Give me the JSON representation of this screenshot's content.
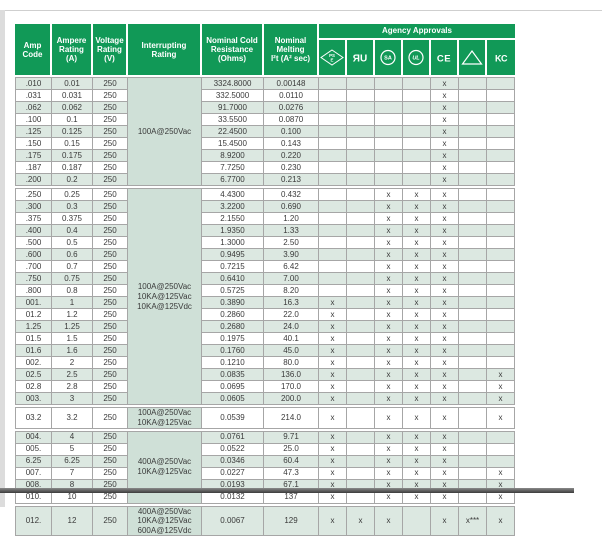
{
  "colors": {
    "header_green": "#119957",
    "row_stripe_green": "#dce8e1",
    "interrupting_cell_green": "#cfe0d7",
    "border_gray": "#a6a6a6"
  },
  "table": {
    "headers": {
      "amp_code": "Amp\nCode",
      "ampere_rating": "Ampere\nRating\n(A)",
      "voltage_rating": "Voltage\nRating\n(V)",
      "interrupting_rating": "Interrupting\nRating",
      "nominal_cold_resistance": "Nominal Cold\nResistance\n(Ohms)",
      "nominal_melting": "Nominal\nMelting\nI²t (A² sec)",
      "agency_approvals": "Agency Approvals"
    },
    "agency_icons": [
      {
        "name": "pse-icon",
        "glyph_top": "PS",
        "glyph_bottom": "E"
      },
      {
        "name": "ul-recognized-icon",
        "glyph": "ЯU"
      },
      {
        "name": "csa-icon",
        "glyph": "SA"
      },
      {
        "name": "ul-listed-icon",
        "glyph": "UL"
      },
      {
        "name": "ce-icon",
        "glyph": "CE"
      },
      {
        "name": "vde-triangle-icon",
        "glyph": ""
      },
      {
        "name": "kc-icon",
        "glyph": "KC"
      }
    ],
    "groups": [
      {
        "start": 0,
        "count": 9,
        "label": "100A@250Vac"
      },
      {
        "start": 9,
        "count": 18,
        "label": "100A@250Vac\n10KA@125Vac\n10KA@125Vdc"
      },
      {
        "start": 27,
        "count": 1,
        "label": "100A@250Vac\n10KA@125Vac"
      },
      {
        "start": 28,
        "count": 6,
        "label": "400A@250Vac\n10KA@125Vac"
      },
      {
        "start": 34,
        "count": 1,
        "label": "400A@250Vac\n10KA@125Vac\n600A@125Vdc"
      }
    ],
    "rows": [
      {
        "code": ".010",
        "ampere": "0.01",
        "voltage": "250",
        "resistance": "3324.8000",
        "i2t": "0.00148",
        "approvals": [
          "",
          "",
          "",
          "",
          "x",
          "",
          ""
        ]
      },
      {
        "code": ".031",
        "ampere": "0.031",
        "voltage": "250",
        "resistance": "332.5000",
        "i2t": "0.0110",
        "approvals": [
          "",
          "",
          "",
          "",
          "x",
          "",
          ""
        ]
      },
      {
        "code": ".062",
        "ampere": "0.062",
        "voltage": "250",
        "resistance": "91.7000",
        "i2t": "0.0276",
        "approvals": [
          "",
          "",
          "",
          "",
          "x",
          "",
          ""
        ]
      },
      {
        "code": ".100",
        "ampere": "0.1",
        "voltage": "250",
        "resistance": "33.5500",
        "i2t": "0.0870",
        "approvals": [
          "",
          "",
          "",
          "",
          "x",
          "",
          ""
        ]
      },
      {
        "code": ".125",
        "ampere": "0.125",
        "voltage": "250",
        "resistance": "22.4500",
        "i2t": "0.100",
        "approvals": [
          "",
          "",
          "",
          "",
          "x",
          "",
          ""
        ]
      },
      {
        "code": ".150",
        "ampere": "0.15",
        "voltage": "250",
        "resistance": "15.4500",
        "i2t": "0.143",
        "approvals": [
          "",
          "",
          "",
          "",
          "x",
          "",
          ""
        ]
      },
      {
        "code": ".175",
        "ampere": "0.175",
        "voltage": "250",
        "resistance": "8.9200",
        "i2t": "0.220",
        "approvals": [
          "",
          "",
          "",
          "",
          "x",
          "",
          ""
        ]
      },
      {
        "code": ".187",
        "ampere": "0.187",
        "voltage": "250",
        "resistance": "7.7250",
        "i2t": "0.230",
        "approvals": [
          "",
          "",
          "",
          "",
          "x",
          "",
          ""
        ]
      },
      {
        "code": ".200",
        "ampere": "0.2",
        "voltage": "250",
        "resistance": "6.7700",
        "i2t": "0.213",
        "approvals": [
          "",
          "",
          "",
          "",
          "x",
          "",
          ""
        ]
      },
      {
        "code": ".250",
        "ampere": "0.25",
        "voltage": "250",
        "resistance": "4.4300",
        "i2t": "0.432",
        "approvals": [
          "",
          "",
          "x",
          "x",
          "x",
          "",
          ""
        ]
      },
      {
        "code": ".300",
        "ampere": "0.3",
        "voltage": "250",
        "resistance": "3.2200",
        "i2t": "0.690",
        "approvals": [
          "",
          "",
          "x",
          "x",
          "x",
          "",
          ""
        ]
      },
      {
        "code": ".375",
        "ampere": "0.375",
        "voltage": "250",
        "resistance": "2.1550",
        "i2t": "1.20",
        "approvals": [
          "",
          "",
          "x",
          "x",
          "x",
          "",
          ""
        ]
      },
      {
        "code": ".400",
        "ampere": "0.4",
        "voltage": "250",
        "resistance": "1.9350",
        "i2t": "1.33",
        "approvals": [
          "",
          "",
          "x",
          "x",
          "x",
          "",
          ""
        ]
      },
      {
        "code": ".500",
        "ampere": "0.5",
        "voltage": "250",
        "resistance": "1.3000",
        "i2t": "2.50",
        "approvals": [
          "",
          "",
          "x",
          "x",
          "x",
          "",
          ""
        ]
      },
      {
        "code": ".600",
        "ampere": "0.6",
        "voltage": "250",
        "resistance": "0.9495",
        "i2t": "3.90",
        "approvals": [
          "",
          "",
          "x",
          "x",
          "x",
          "",
          ""
        ]
      },
      {
        "code": ".700",
        "ampere": "0.7",
        "voltage": "250",
        "resistance": "0.7215",
        "i2t": "6.42",
        "approvals": [
          "",
          "",
          "x",
          "x",
          "x",
          "",
          ""
        ]
      },
      {
        "code": ".750",
        "ampere": "0.75",
        "voltage": "250",
        "resistance": "0.6410",
        "i2t": "7.00",
        "approvals": [
          "",
          "",
          "x",
          "x",
          "x",
          "",
          ""
        ]
      },
      {
        "code": ".800",
        "ampere": "0.8",
        "voltage": "250",
        "resistance": "0.5725",
        "i2t": "8.20",
        "approvals": [
          "",
          "",
          "x",
          "x",
          "x",
          "",
          ""
        ]
      },
      {
        "code": "001.",
        "ampere": "1",
        "voltage": "250",
        "resistance": "0.3890",
        "i2t": "16.3",
        "approvals": [
          "x",
          "",
          "x",
          "x",
          "x",
          "",
          ""
        ]
      },
      {
        "code": "01.2",
        "ampere": "1.2",
        "voltage": "250",
        "resistance": "0.2860",
        "i2t": "22.0",
        "approvals": [
          "x",
          "",
          "x",
          "x",
          "x",
          "",
          ""
        ]
      },
      {
        "code": "1.25",
        "ampere": "1.25",
        "voltage": "250",
        "resistance": "0.2680",
        "i2t": "24.0",
        "approvals": [
          "x",
          "",
          "x",
          "x",
          "x",
          "",
          ""
        ]
      },
      {
        "code": "01.5",
        "ampere": "1.5",
        "voltage": "250",
        "resistance": "0.1975",
        "i2t": "40.1",
        "approvals": [
          "x",
          "",
          "x",
          "x",
          "x",
          "",
          ""
        ]
      },
      {
        "code": "01.6",
        "ampere": "1.6",
        "voltage": "250",
        "resistance": "0.1760",
        "i2t": "45.0",
        "approvals": [
          "x",
          "",
          "x",
          "x",
          "x",
          "",
          ""
        ]
      },
      {
        "code": "002.",
        "ampere": "2",
        "voltage": "250",
        "resistance": "0.1210",
        "i2t": "80.0",
        "approvals": [
          "x",
          "",
          "x",
          "x",
          "x",
          "",
          ""
        ]
      },
      {
        "code": "02.5",
        "ampere": "2.5",
        "voltage": "250",
        "resistance": "0.0835",
        "i2t": "136.0",
        "approvals": [
          "x",
          "",
          "x",
          "x",
          "x",
          "",
          "x"
        ]
      },
      {
        "code": "02.8",
        "ampere": "2.8",
        "voltage": "250",
        "resistance": "0.0695",
        "i2t": "170.0",
        "approvals": [
          "x",
          "",
          "x",
          "x",
          "x",
          "",
          "x"
        ]
      },
      {
        "code": "003.",
        "ampere": "3",
        "voltage": "250",
        "resistance": "0.0605",
        "i2t": "200.0",
        "approvals": [
          "x",
          "",
          "x",
          "x",
          "x",
          "",
          "x"
        ]
      },
      {
        "code": "03.2",
        "ampere": "3.2",
        "voltage": "250",
        "resistance": "0.0539",
        "i2t": "214.0",
        "approvals": [
          "x",
          "",
          "x",
          "x",
          "x",
          "",
          "x"
        ]
      },
      {
        "code": "004.",
        "ampere": "4",
        "voltage": "250",
        "resistance": "0.0761",
        "i2t": "9.71",
        "approvals": [
          "x",
          "",
          "x",
          "x",
          "x",
          "",
          ""
        ]
      },
      {
        "code": "005.",
        "ampere": "5",
        "voltage": "250",
        "resistance": "0.0522",
        "i2t": "25.0",
        "approvals": [
          "x",
          "",
          "x",
          "x",
          "x",
          "",
          ""
        ]
      },
      {
        "code": "6.25",
        "ampere": "6.25",
        "voltage": "250",
        "resistance": "0.0346",
        "i2t": "60.4",
        "approvals": [
          "x",
          "",
          "x",
          "x",
          "x",
          "",
          ""
        ]
      },
      {
        "code": "007.",
        "ampere": "7",
        "voltage": "250",
        "resistance": "0.0227",
        "i2t": "47.3",
        "approvals": [
          "x",
          "",
          "x",
          "x",
          "x",
          "",
          "x"
        ]
      },
      {
        "code": "008.",
        "ampere": "8",
        "voltage": "250",
        "resistance": "0.0193",
        "i2t": "67.1",
        "approvals": [
          "x",
          "",
          "x",
          "x",
          "x",
          "",
          "x"
        ]
      },
      {
        "code": "010.",
        "ampere": "10",
        "voltage": "250",
        "resistance": "0.0132",
        "i2t": "137",
        "approvals": [
          "x",
          "",
          "x",
          "x",
          "x",
          "",
          "x"
        ]
      },
      {
        "code": "012.",
        "ampere": "12",
        "voltage": "250",
        "resistance": "0.0067",
        "i2t": "129",
        "approvals": [
          "x",
          "x",
          "x",
          "",
          "x",
          "x***",
          "x"
        ]
      }
    ]
  }
}
